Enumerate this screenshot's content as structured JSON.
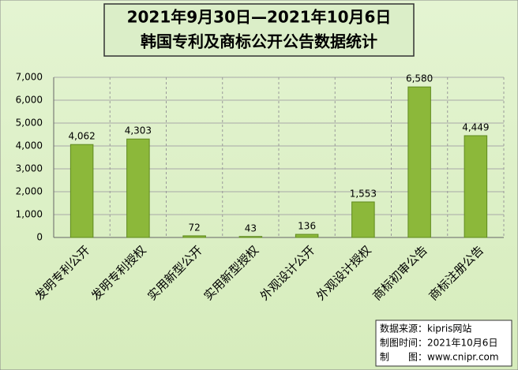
{
  "chart_data": {
    "type": "bar",
    "title": "2021年9月30日—2021年10月6日",
    "subtitle": "韩国专利及商标公开公告数据统计",
    "categories": [
      "发明专利公开",
      "发明专利授权",
      "实用新型公开",
      "实用新型授权",
      "外观设计公开",
      "外观设计授权",
      "商标初审公告",
      "商标注册公告"
    ],
    "values": [
      4062,
      4303,
      72,
      43,
      136,
      1553,
      6580,
      4449
    ],
    "value_labels": [
      "4,062",
      "4,303",
      "72",
      "43",
      "136",
      "1,553",
      "6,580",
      "4,449"
    ],
    "color": "#8cb83a",
    "ylim": [
      0,
      7000
    ],
    "yticks": [
      0,
      {
        "value": 1000,
        "label": "1,000"
      },
      {
        "value": 2000,
        "label": "2,000"
      },
      {
        "value": 3000,
        "label": "3,000"
      },
      {
        "value": 4000,
        "label": "4,000"
      },
      {
        "value": 5000,
        "label": "5,000"
      },
      {
        "value": 6000,
        "label": "6,000"
      },
      {
        "value": 7000,
        "label": "7,000"
      }
    ],
    "grid": true,
    "notes": [
      "数据来源：kipris网站",
      "制图时间：2021年10月6日",
      "制　　图：www.cnipr.com"
    ]
  }
}
